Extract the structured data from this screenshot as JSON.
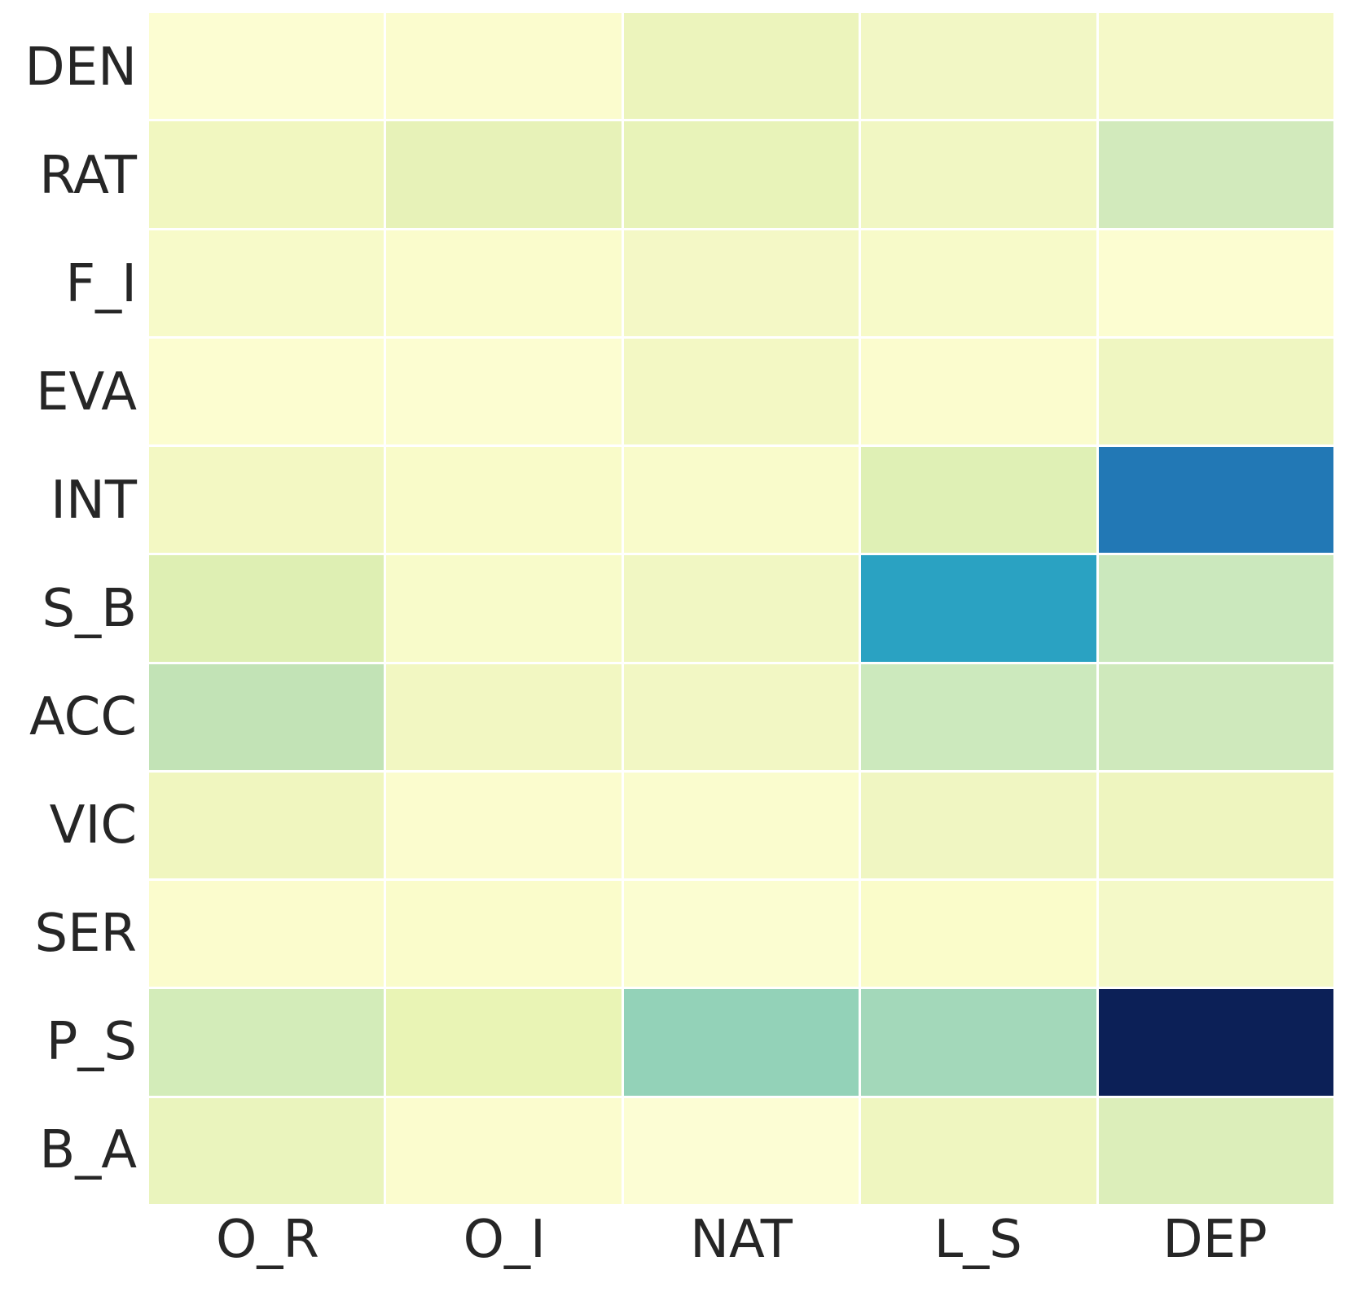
{
  "chart_data": {
    "type": "heatmap",
    "title": "",
    "xlabel": "",
    "ylabel": "",
    "rows": [
      "DEN",
      "RAT",
      "F_I",
      "EVA",
      "INT",
      "S_B",
      "ACC",
      "VIC",
      "SER",
      "P_S",
      "B_A"
    ],
    "columns": [
      "O_R",
      "O_I",
      "NAT",
      "L_S",
      "DEP"
    ],
    "values": [
      [
        0.02,
        0.03,
        0.1,
        0.07,
        0.07
      ],
      [
        0.08,
        0.12,
        0.12,
        0.08,
        0.21
      ],
      [
        0.05,
        0.03,
        0.06,
        0.05,
        0.02
      ],
      [
        0.02,
        0.02,
        0.07,
        0.03,
        0.09
      ],
      [
        0.07,
        0.04,
        0.04,
        0.15,
        0.7
      ],
      [
        0.16,
        0.04,
        0.08,
        0.56,
        0.23
      ],
      [
        0.26,
        0.07,
        0.08,
        0.23,
        0.22
      ],
      [
        0.09,
        0.03,
        0.03,
        0.09,
        0.1
      ],
      [
        0.03,
        0.03,
        0.02,
        0.03,
        0.06
      ],
      [
        0.19,
        0.12,
        0.34,
        0.31,
        0.99
      ],
      [
        0.11,
        0.03,
        0.02,
        0.09,
        0.16
      ]
    ],
    "cell_colors": [
      [
        "#fcfdd2",
        "#fbfcce",
        "#ecf4bc",
        "#f2f7c5",
        "#f5f9c8"
      ],
      [
        "#f1f7c0",
        "#e7f2b8",
        "#e8f3b9",
        "#f1f7c3",
        "#d2eabc"
      ],
      [
        "#f7fac9",
        "#fafccc",
        "#f4f8c6",
        "#f7fac9",
        "#fcfdd1"
      ],
      [
        "#fcfdd0",
        "#fcfdd1",
        "#f3f8c4",
        "#fbfcce",
        "#eff6c1"
      ],
      [
        "#f3f8c3",
        "#f9fbc9",
        "#f9fbcb",
        "#dff0b5",
        "#2278b5"
      ],
      [
        "#deefb3",
        "#f8fbca",
        "#f1f7c3",
        "#2aa2c2",
        "#cbe8bd"
      ],
      [
        "#c2e3b6",
        "#f2f7c2",
        "#f2f7c4",
        "#cce9bd",
        "#cfe9bc"
      ],
      [
        "#f0f6bf",
        "#fbfcce",
        "#fafcce",
        "#f0f6c2",
        "#eef5bf"
      ],
      [
        "#fbfccd",
        "#fafccb",
        "#fbfdd1",
        "#fafcca",
        "#f4f9c8"
      ],
      [
        "#d3ecb9",
        "#e9f4b5",
        "#93d2b8",
        "#a3d8ba",
        "#0c2057"
      ],
      [
        "#eaf4bd",
        "#fbfcce",
        "#fcfdd4",
        "#eff6c0",
        "#dceeba"
      ]
    ],
    "colormap": "YlGnBu",
    "vmin": 0,
    "vmax": 1,
    "legend": "none",
    "grid_line_color": "#ffffff",
    "background_color": "#ffffff",
    "tick_label_color": "#262626"
  }
}
